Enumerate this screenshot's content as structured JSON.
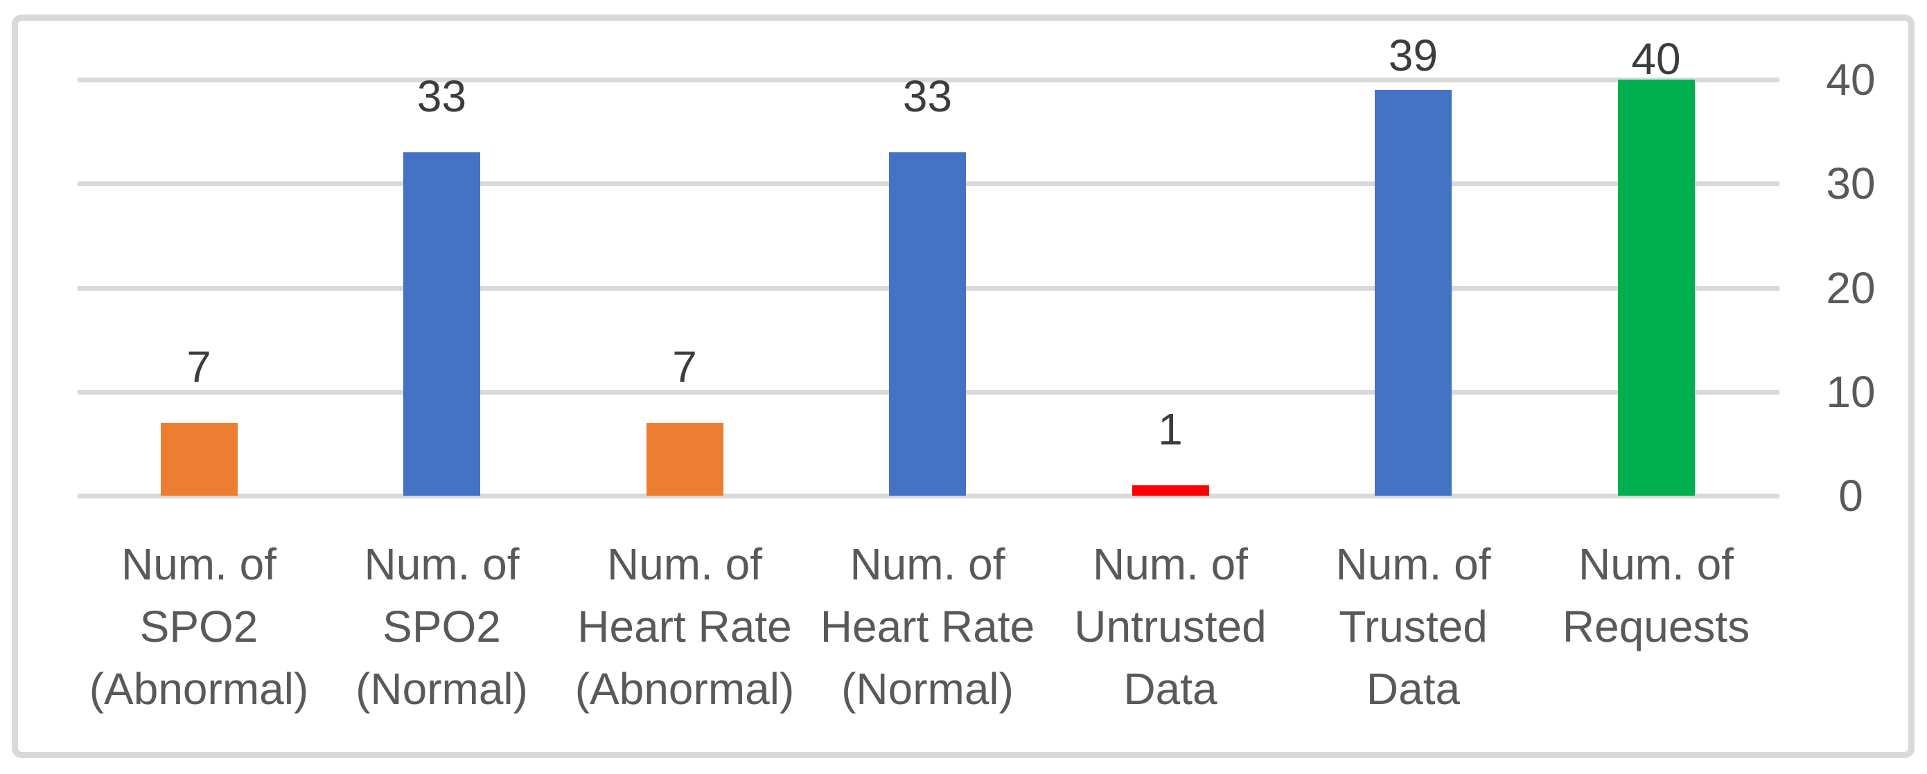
{
  "chart_data": {
    "type": "bar",
    "title": "",
    "xlabel": "",
    "ylabel": "",
    "categories": [
      "Num. of SPO2 (Abnormal)",
      "Num. of SPO2 (Normal)",
      "Num. of Heart Rate (Abnormal)",
      "Num. of Heart Rate (Normal)",
      "Num. of Untrusted Data",
      "Num. of Trusted Data",
      "Num. of Requests"
    ],
    "category_label_lines": [
      [
        "Num. of",
        "SPO2",
        "(Abnormal)"
      ],
      [
        "Num. of",
        "SPO2",
        "(Normal)"
      ],
      [
        "Num. of",
        "Heart Rate",
        "(Abnormal)"
      ],
      [
        "Num. of",
        "Heart Rate",
        "(Normal)"
      ],
      [
        "Num. of",
        "Untrusted",
        "Data"
      ],
      [
        "Num. of",
        "Trusted",
        "Data"
      ],
      [
        "Num. of",
        "Requests"
      ]
    ],
    "values": [
      7,
      33,
      7,
      33,
      1,
      39,
      40
    ],
    "data_labels": [
      "7",
      "33",
      "7",
      "33",
      "1",
      "39",
      "40"
    ],
    "bar_colors": [
      "#ED7D31",
      "#4472C4",
      "#ED7D31",
      "#4472C4",
      "#FF0000",
      "#4472C4",
      "#00B050"
    ],
    "y_ticks": [
      "40",
      "30",
      "20",
      "10",
      "0"
    ],
    "y_tick_values": [
      40,
      30,
      20,
      10,
      0
    ],
    "ylim": [
      0,
      40
    ],
    "grid": true,
    "legend": "none",
    "y_axis_side": "right"
  },
  "style": {
    "background": "#FFFFFF",
    "frame_border_color": "#D9D9D9",
    "gridline_color": "#D9D9D9",
    "data_label_color": "#3C3C3C",
    "axis_label_color": "#595959"
  }
}
